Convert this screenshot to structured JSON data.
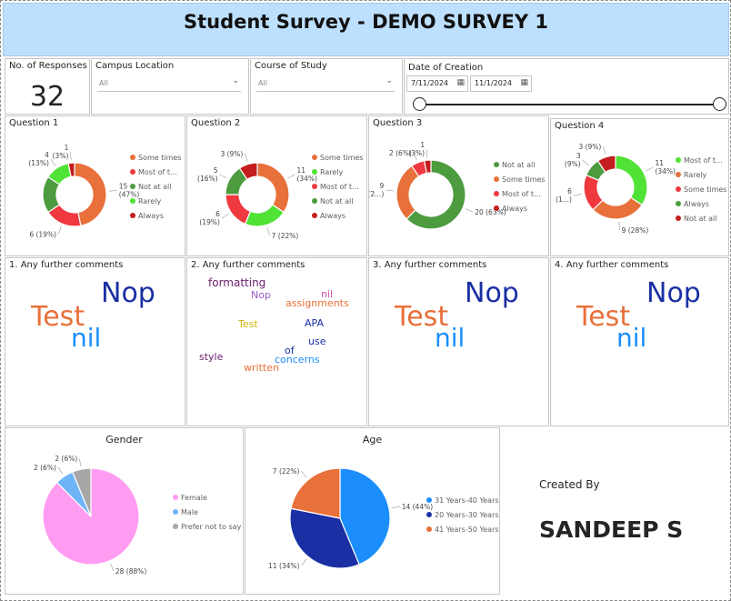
{
  "title": "Student Survey - DEMO SURVEY 1",
  "responses": {
    "label": "No. of Responses",
    "value": "32"
  },
  "campus_slicer": {
    "label": "Campus Location",
    "value": "All"
  },
  "course_slicer": {
    "label": "Course of Study",
    "value": "All"
  },
  "date_slicer": {
    "label": "Date of Creation",
    "start": "7/11/2024",
    "end": "11/1/2024"
  },
  "colors": {
    "some_times": "#e8703a",
    "most": "#f0383f",
    "not_at_all": "#4c9b3f",
    "rarely": "#50e234",
    "always": "#c31d1d",
    "female": "#ff9cf2",
    "male": "#6eb5f8",
    "prefer_not": "#a6a6a6",
    "age1": "#1b8efb",
    "age2": "#1a2fa4",
    "age3": "#e8703a"
  },
  "chart_data": [
    {
      "type": "pie",
      "title": "Question 1",
      "slices": [
        {
          "name": "Some times",
          "legend": "Some times",
          "value": 15,
          "pct": "47%",
          "color": "#e8703a",
          "label": "15\n(47%)"
        },
        {
          "name": "Most of the time",
          "legend": "Most of t...",
          "value": 6,
          "pct": "19%",
          "color": "#f0383f",
          "label": "6 (19%)"
        },
        {
          "name": "Not at all",
          "legend": "Not at all",
          "value": 6,
          "pct": "19%",
          "color": "#4c9b3f",
          "label": ""
        },
        {
          "name": "Rarely",
          "legend": "Rarely",
          "value": 4,
          "pct": "13%",
          "color": "#50e234",
          "label": "4\n(13%)"
        },
        {
          "name": "Always",
          "legend": "Always",
          "value": 1,
          "pct": "3%",
          "color": "#c31d1d",
          "label": "1\n(3%)"
        }
      ]
    },
    {
      "type": "pie",
      "title": "Question 2",
      "slices": [
        {
          "name": "Some times",
          "legend": "Some times",
          "value": 11,
          "pct": "34%",
          "color": "#e8703a",
          "label": "11\n(34%)"
        },
        {
          "name": "Rarely",
          "legend": "Rarely",
          "value": 7,
          "pct": "22%",
          "color": "#50e234",
          "label": "7 (22%)"
        },
        {
          "name": "Most of the time",
          "legend": "Most of t...",
          "value": 6,
          "pct": "19%",
          "color": "#f0383f",
          "label": "6\n(19%)"
        },
        {
          "name": "Not at all",
          "legend": "Not at all",
          "value": 5,
          "pct": "16%",
          "color": "#4c9b3f",
          "label": "5\n(16%)"
        },
        {
          "name": "Always",
          "legend": "Always",
          "value": 3,
          "pct": "9%",
          "color": "#c31d1d",
          "label": "3 (9%)"
        }
      ]
    },
    {
      "type": "pie",
      "title": "Question 3",
      "slices": [
        {
          "name": "Not at all",
          "legend": "Not at all",
          "value": 20,
          "pct": "63%",
          "color": "#4c9b3f",
          "label": "20 (63%)"
        },
        {
          "name": "Some times",
          "legend": "Some times",
          "value": 9,
          "pct": "28%",
          "color": "#e8703a",
          "label": "9\n(2...)"
        },
        {
          "name": "Most of the time",
          "legend": "Most of t...",
          "value": 2,
          "pct": "6%",
          "color": "#f0383f",
          "label": "2 (6%)"
        },
        {
          "name": "Always",
          "legend": "Always",
          "value": 1,
          "pct": "3%",
          "color": "#c31d1d",
          "label": "1\n(3%)"
        }
      ]
    },
    {
      "type": "pie",
      "title": "Question 4",
      "slices": [
        {
          "name": "Most of the time",
          "legend": "Most of t...",
          "value": 11,
          "pct": "34%",
          "color": "#50e234",
          "label": "11\n(34%)"
        },
        {
          "name": "Rarely",
          "legend": "Rarely",
          "value": 9,
          "pct": "28%",
          "color": "#e8703a",
          "label": "9 (28%)"
        },
        {
          "name": "Some times",
          "legend": "Some times",
          "value": 6,
          "pct": "19%",
          "color": "#f0383f",
          "label": "6\n(1...)"
        },
        {
          "name": "Always",
          "legend": "Always",
          "value": 3,
          "pct": "9%",
          "color": "#4c9b3f",
          "label": "3\n(9%)"
        },
        {
          "name": "Not at all",
          "legend": "Not at all",
          "value": 3,
          "pct": "9%",
          "color": "#c31d1d",
          "label": "3 (9%)"
        }
      ]
    },
    {
      "type": "pie",
      "title": "Gender",
      "slices": [
        {
          "name": "Female",
          "legend": "Female",
          "value": 28,
          "pct": "88%",
          "color": "#ff9cf2",
          "label": "28 (88%)"
        },
        {
          "name": "Male",
          "legend": "Male",
          "value": 2,
          "pct": "6%",
          "color": "#6eb5f8",
          "label": "2 (6%)"
        },
        {
          "name": "Prefer not to say",
          "legend": "Prefer not to say",
          "value": 2,
          "pct": "6%",
          "color": "#a6a6a6",
          "label": "2 (6%)"
        }
      ]
    },
    {
      "type": "pie",
      "title": "Age",
      "slices": [
        {
          "name": "31 Years-40 Years",
          "legend": "31 Years-40 Years",
          "value": 14,
          "pct": "44%",
          "color": "#1b8efb",
          "label": "14 (44%)"
        },
        {
          "name": "20 Years-30 Years",
          "legend": "20 Years-30 Years",
          "value": 11,
          "pct": "34%",
          "color": "#1a2fa4",
          "label": "11 (34%)"
        },
        {
          "name": "41 Years-50 Years",
          "legend": "41 Years-50 Years",
          "value": 7,
          "pct": "22%",
          "color": "#e8703a",
          "label": "7 (22%)"
        }
      ]
    }
  ],
  "wordclouds": [
    {
      "title": "1. Any further comments",
      "words": [
        {
          "text": "Nop",
          "color": "#1a2fa4"
        },
        {
          "text": "Test",
          "color": "#e8703a"
        },
        {
          "text": "nil",
          "color": "#1b8efb"
        }
      ]
    },
    {
      "title": "2. Any further comments",
      "words": [
        {
          "text": "formatting",
          "color": "#6b1d6e"
        },
        {
          "text": "Nop",
          "color": "#9b59c7"
        },
        {
          "text": "nil",
          "color": "#d64fb0"
        },
        {
          "text": "assignments",
          "color": "#e8703a"
        },
        {
          "text": "Test",
          "color": "#d3b60a"
        },
        {
          "text": "APA",
          "color": "#1a2fa4"
        },
        {
          "text": "use",
          "color": "#1a2fa4"
        },
        {
          "text": "of",
          "color": "#1a2fa4"
        },
        {
          "text": "style",
          "color": "#6b1d6e"
        },
        {
          "text": "concerns",
          "color": "#1b8efb"
        },
        {
          "text": "written",
          "color": "#e8703a"
        }
      ]
    },
    {
      "title": "3. Any further comments",
      "words": [
        {
          "text": "Nop",
          "color": "#1a2fa4"
        },
        {
          "text": "Test",
          "color": "#e8703a"
        },
        {
          "text": "nil",
          "color": "#1b8efb"
        }
      ]
    },
    {
      "title": "4. Any further comments",
      "words": [
        {
          "text": "Nop",
          "color": "#1a2fa4"
        },
        {
          "text": "Test",
          "color": "#e8703a"
        },
        {
          "text": "nil",
          "color": "#1b8efb"
        }
      ]
    }
  ],
  "footer": {
    "created_by_label": "Created By",
    "author": "SANDEEP S"
  }
}
